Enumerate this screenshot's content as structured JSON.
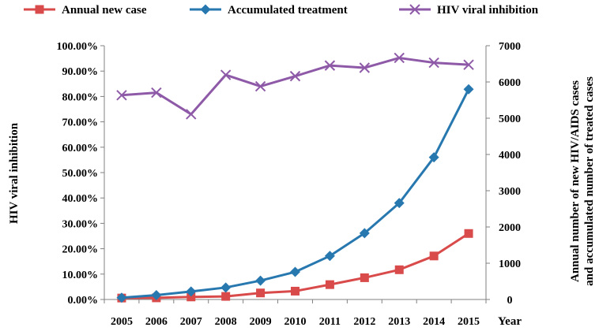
{
  "chart_data": {
    "type": "line",
    "title": "",
    "xlabel": "Year",
    "ylabel_left": "HIV viral inhibition",
    "ylabel_right_line1": "Annual number  of  new HIV/AIDS cases",
    "ylabel_right_line2": "and accumulated number of treated cases",
    "categories": [
      "2005",
      "2006",
      "2007",
      "2008",
      "2009",
      "2010",
      "2011",
      "2012",
      "2013",
      "2014",
      "2015"
    ],
    "left_axis": {
      "min": 0,
      "max": 1.0,
      "ticks": [
        "0.00%",
        "10.00%",
        "20.00%",
        "30.00%",
        "40.00%",
        "50.00%",
        "60.00%",
        "70.00%",
        "80.00%",
        "90.00%",
        "100.00%"
      ]
    },
    "right_axis": {
      "min": 0,
      "max": 7000,
      "ticks": [
        "0",
        "1000",
        "2000",
        "3000",
        "4000",
        "5000",
        "6000",
        "7000"
      ]
    },
    "series": [
      {
        "name": "Annual new case",
        "axis": "right",
        "color": "#d94a4a",
        "marker": "square",
        "values": [
          40,
          45,
          70,
          85,
          180,
          230,
          410,
          600,
          820,
          1200,
          1820
        ]
      },
      {
        "name": "Accumulated treatment",
        "axis": "right",
        "color": "#2878b0",
        "marker": "diamond",
        "values": [
          50,
          120,
          220,
          330,
          520,
          760,
          1200,
          1830,
          2660,
          3920,
          5800
        ]
      },
      {
        "name": "HIV viral inhibition",
        "axis": "left",
        "color": "#8e5aa8",
        "marker": "x",
        "values": [
          0.805,
          0.815,
          0.73,
          0.885,
          0.84,
          0.88,
          0.922,
          0.913,
          0.952,
          0.933,
          0.925
        ]
      }
    ],
    "legend_position": "top"
  }
}
